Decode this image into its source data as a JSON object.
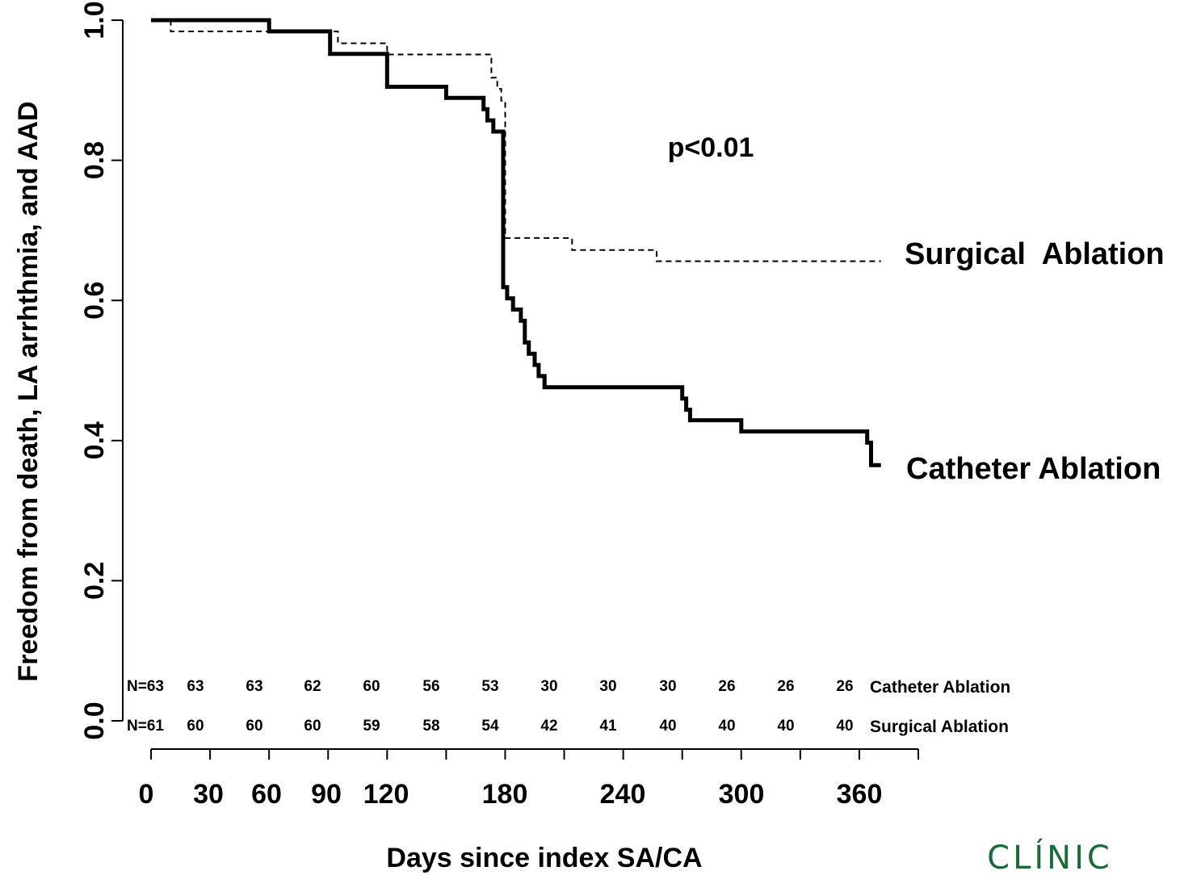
{
  "chart_data": {
    "type": "line",
    "title": "",
    "xlabel": "Days since index SA/CA",
    "ylabel": "Freedom from death, LA arrhthmia, and AAD",
    "xlim": [
      0,
      390
    ],
    "ylim": [
      0,
      1.0
    ],
    "x_ticks": [
      0,
      30,
      60,
      90,
      120,
      180,
      240,
      300,
      360
    ],
    "x_minor_ticks": [
      0,
      30,
      60,
      90,
      120,
      150,
      180,
      210,
      240,
      270,
      300,
      330,
      360,
      390
    ],
    "y_ticks": [
      "0.0",
      "0.2",
      "0.4",
      "0.6",
      "0.8",
      "1.0"
    ],
    "y_tick_values": [
      0,
      0.2,
      0.4,
      0.6,
      0.8,
      1.0
    ],
    "annotation": "p<0.01",
    "series": [
      {
        "name": "Surgical  Ablation",
        "style": "dashed",
        "color": "#000000",
        "step_points": [
          [
            0,
            1.0
          ],
          [
            10,
            0.984
          ],
          [
            60,
            0.984
          ],
          [
            95,
            0.967
          ],
          [
            120,
            0.951
          ],
          [
            172,
            0.951
          ],
          [
            173,
            0.918
          ],
          [
            176,
            0.902
          ],
          [
            178,
            0.885
          ],
          [
            180,
            0.852
          ],
          [
            180,
            0.689
          ],
          [
            214,
            0.689
          ],
          [
            214,
            0.672
          ],
          [
            257,
            0.672
          ],
          [
            257,
            0.656
          ],
          [
            371,
            0.656
          ]
        ]
      },
      {
        "name": "Catheter Ablation",
        "style": "solid",
        "color": "#000000",
        "step_points": [
          [
            0,
            1.0
          ],
          [
            60,
            1.0
          ],
          [
            60,
            0.984
          ],
          [
            91,
            0.984
          ],
          [
            91,
            0.952
          ],
          [
            120,
            0.952
          ],
          [
            120,
            0.905
          ],
          [
            150,
            0.905
          ],
          [
            150,
            0.889
          ],
          [
            169,
            0.889
          ],
          [
            169,
            0.873
          ],
          [
            171,
            0.873
          ],
          [
            171,
            0.857
          ],
          [
            174,
            0.857
          ],
          [
            174,
            0.841
          ],
          [
            179,
            0.841
          ],
          [
            179,
            0.619
          ],
          [
            181,
            0.619
          ],
          [
            181,
            0.603
          ],
          [
            184,
            0.603
          ],
          [
            184,
            0.587
          ],
          [
            188,
            0.587
          ],
          [
            188,
            0.571
          ],
          [
            190,
            0.571
          ],
          [
            190,
            0.54
          ],
          [
            192,
            0.54
          ],
          [
            192,
            0.524
          ],
          [
            195,
            0.524
          ],
          [
            195,
            0.508
          ],
          [
            197,
            0.508
          ],
          [
            197,
            0.492
          ],
          [
            200,
            0.492
          ],
          [
            200,
            0.476
          ],
          [
            270,
            0.476
          ],
          [
            270,
            0.46
          ],
          [
            272,
            0.46
          ],
          [
            272,
            0.444
          ],
          [
            274,
            0.444
          ],
          [
            274,
            0.429
          ],
          [
            300,
            0.429
          ],
          [
            300,
            0.413
          ],
          [
            364,
            0.413
          ],
          [
            364,
            0.397
          ],
          [
            366,
            0.397
          ],
          [
            366,
            0.365
          ],
          [
            371,
            0.365
          ]
        ]
      }
    ],
    "at_risk": [
      {
        "label": "Catheter Ablation",
        "values": [
          "N=63",
          "63",
          "63",
          "62",
          "60",
          "56",
          "53",
          "30",
          "30",
          "30",
          "26",
          "26",
          "26"
        ]
      },
      {
        "label": "Surgical Ablation",
        "values": [
          "N=61",
          "60",
          "60",
          "60",
          "59",
          "58",
          "54",
          "42",
          "41",
          "40",
          "40",
          "40",
          "40"
        ]
      }
    ]
  },
  "logo_text": "CLÍNIC"
}
